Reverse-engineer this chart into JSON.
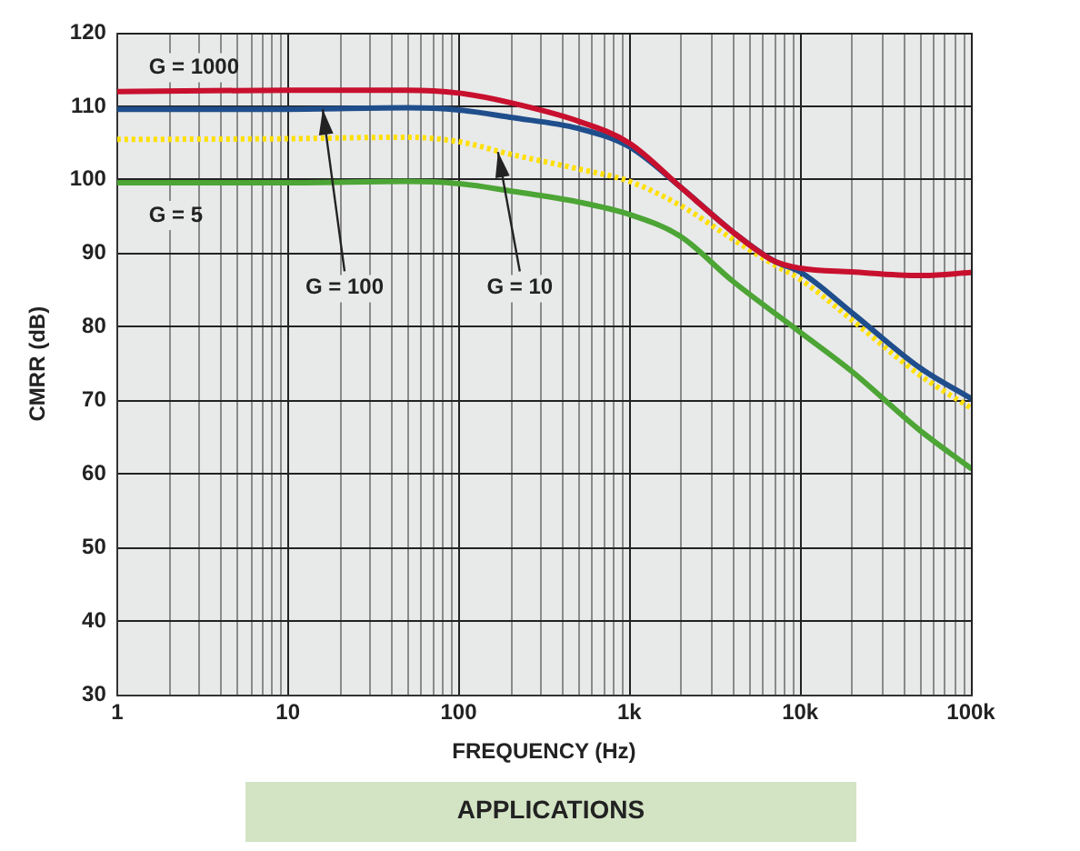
{
  "chart_data": {
    "type": "line",
    "xlabel": "FREQUENCY (Hz)",
    "ylabel": "CMRR (dB)",
    "log": "x",
    "grid": true,
    "legend": false,
    "marker": "none",
    "xlim": [
      1,
      100000
    ],
    "xticks": [
      1,
      10,
      100,
      {
        "value": 1000,
        "label": "1k"
      },
      {
        "value": 10000,
        "label": "10k"
      },
      {
        "value": 100000,
        "label": "100k"
      }
    ],
    "ylim": [
      30,
      120
    ],
    "yticks": [
      30,
      40,
      50,
      60,
      70,
      80,
      90,
      100,
      110,
      120
    ],
    "annotations": [
      {
        "text": "G = 100",
        "x": 16,
        "y": 109.6
      },
      {
        "text": "G = 10",
        "x": 170,
        "y": 103.8
      },
      "APPLICATIONS"
    ],
    "series": [
      {
        "name": "G = 1000",
        "color": "#c8102e",
        "line_style": "solid",
        "x": [
          1,
          10,
          50,
          100,
          200,
          500,
          1000,
          2000,
          4000,
          7000,
          10000,
          20000,
          50000,
          100000
        ],
        "values": [
          112,
          112.2,
          112.2,
          111.8,
          110.5,
          108,
          105,
          99,
          93,
          89,
          88,
          87.5,
          87,
          87.4
        ]
      },
      {
        "color": "#1f4e8c",
        "line_style": "solid",
        "x": [
          1,
          10,
          50,
          100,
          200,
          500,
          1000,
          2000,
          4000,
          7000,
          10000,
          20000,
          50000,
          100000
        ],
        "values": [
          109.6,
          109.6,
          109.8,
          109.5,
          108.5,
          107,
          104.5,
          99,
          93,
          89,
          87.5,
          82,
          74.5,
          70.3
        ]
      },
      {
        "color": "#ffe000",
        "line_style": "dotted",
        "x": [
          1,
          10,
          50,
          100,
          200,
          500,
          1000,
          2000,
          4000,
          7000,
          10000,
          20000,
          50000,
          100000
        ],
        "values": [
          105.5,
          105.6,
          105.8,
          105.2,
          103.5,
          101.5,
          99.8,
          96.5,
          92,
          88.5,
          86.5,
          81,
          73.5,
          69
        ]
      },
      {
        "name": "G = 5",
        "color": "#4ca535",
        "line_style": "solid",
        "x": [
          1,
          10,
          50,
          100,
          200,
          500,
          1000,
          2000,
          4000,
          10000,
          20000,
          50000,
          100000
        ],
        "values": [
          99.6,
          99.6,
          99.8,
          99.5,
          98.5,
          97,
          95.3,
          92.3,
          86.3,
          79.3,
          74,
          66,
          60.8
        ]
      }
    ]
  }
}
